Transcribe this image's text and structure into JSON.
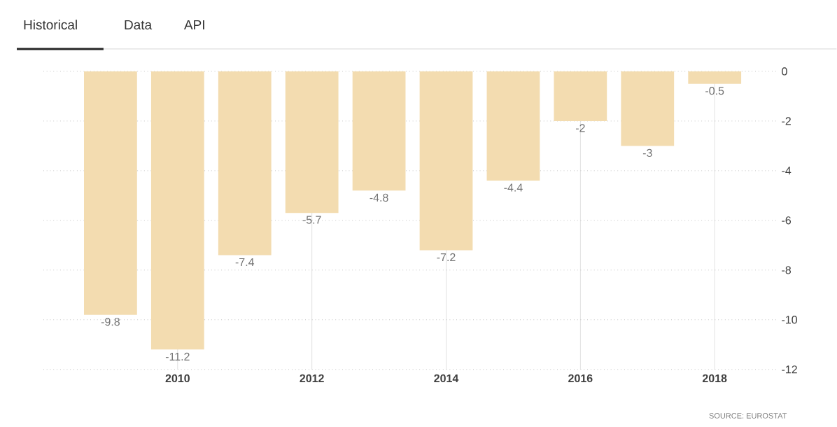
{
  "chart_data": {
    "type": "bar",
    "x": [
      2009,
      2010,
      2011,
      2012,
      2013,
      2014,
      2015,
      2016,
      2017,
      2018
    ],
    "values": [
      -9.8,
      -11.2,
      -7.4,
      -5.7,
      -4.8,
      -7.2,
      -4.4,
      -2,
      -3,
      -0.5
    ],
    "color": "#f3dcb0",
    "xlim": [
      2008,
      2018.92
    ],
    "xticks": [
      2010,
      2012,
      2014,
      2016,
      2018
    ],
    "ylim": [
      -12,
      0
    ],
    "yticks": [
      0,
      -2,
      -4,
      -6,
      -8,
      -10,
      -12
    ],
    "grid": true,
    "data_labels": true,
    "annotations": [
      "Historical",
      "Data",
      "API",
      "SOURCE: EUROSTAT"
    ]
  }
}
